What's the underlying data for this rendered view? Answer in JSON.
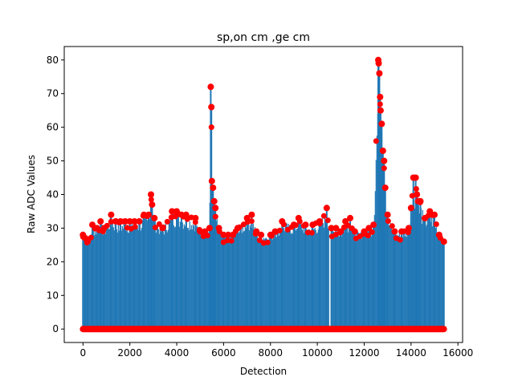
{
  "chart_data": {
    "type": "scatter",
    "title": "sp,on cm ,ge cm",
    "xlabel": "Detection",
    "ylabel": "Raw ADC Values",
    "xlim": [
      -800,
      16200
    ],
    "ylim": [
      -4,
      84
    ],
    "xticks": [
      "0",
      "2000",
      "4000",
      "6000",
      "8000",
      "10000",
      "12000",
      "14000",
      "16000"
    ],
    "xtick_values": [
      0,
      2000,
      4000,
      6000,
      8000,
      10000,
      12000,
      14000,
      16000
    ],
    "yticks": [
      "0",
      "10",
      "20",
      "30",
      "40",
      "50",
      "60",
      "70",
      "80"
    ],
    "ytick_values": [
      0,
      10,
      20,
      30,
      40,
      50,
      60,
      70,
      80
    ],
    "grid": false,
    "legend": "none",
    "stem_color": "#1f77b4",
    "marker_color": "#ff0000",
    "x_extent": [
      0,
      15400
    ],
    "gap_x": 10550,
    "series": [
      {
        "name": "",
        "peaks": [
          [
            0,
            28
          ],
          [
            100,
            27
          ],
          [
            200,
            26
          ],
          [
            400,
            31
          ],
          [
            600,
            30
          ],
          [
            750,
            32
          ],
          [
            900,
            30
          ],
          [
            1200,
            34
          ],
          [
            1400,
            32
          ],
          [
            1600,
            32
          ],
          [
            1800,
            32
          ],
          [
            2000,
            32
          ],
          [
            2200,
            32
          ],
          [
            2400,
            32
          ],
          [
            2600,
            34
          ],
          [
            2800,
            34
          ],
          [
            2900,
            40
          ],
          [
            2950,
            37
          ],
          [
            3050,
            33
          ],
          [
            3400,
            30
          ],
          [
            3800,
            35
          ],
          [
            4000,
            35
          ],
          [
            4200,
            34
          ],
          [
            4400,
            34
          ],
          [
            4800,
            33
          ],
          [
            5000,
            29
          ],
          [
            5200,
            29
          ],
          [
            5400,
            30
          ],
          [
            5450,
            72
          ],
          [
            5480,
            66
          ],
          [
            5500,
            44
          ],
          [
            5550,
            42
          ],
          [
            5600,
            38
          ],
          [
            5650,
            36
          ],
          [
            5800,
            30
          ],
          [
            6000,
            28
          ],
          [
            6200,
            28
          ],
          [
            6400,
            28
          ],
          [
            6600,
            30
          ],
          [
            7000,
            33
          ],
          [
            7200,
            34
          ],
          [
            7400,
            29
          ],
          [
            7600,
            28
          ],
          [
            8000,
            28
          ],
          [
            8200,
            29
          ],
          [
            8500,
            32
          ],
          [
            9000,
            31
          ],
          [
            9200,
            33
          ],
          [
            9500,
            31
          ],
          [
            9800,
            31
          ],
          [
            10100,
            32
          ],
          [
            10400,
            36
          ],
          [
            10600,
            30
          ],
          [
            10800,
            30
          ],
          [
            11000,
            29
          ],
          [
            11200,
            32
          ],
          [
            11400,
            33
          ],
          [
            11600,
            29
          ],
          [
            12000,
            29
          ],
          [
            12200,
            30
          ],
          [
            12400,
            31
          ],
          [
            12600,
            80
          ],
          [
            12620,
            79
          ],
          [
            12650,
            76
          ],
          [
            12680,
            69
          ],
          [
            12700,
            65
          ],
          [
            12750,
            61
          ],
          [
            12800,
            53
          ],
          [
            12850,
            50
          ],
          [
            12900,
            42
          ],
          [
            13000,
            34
          ],
          [
            13300,
            29
          ],
          [
            13600,
            29
          ],
          [
            13900,
            30
          ],
          [
            14000,
            36
          ],
          [
            14100,
            45
          ],
          [
            14200,
            45
          ],
          [
            14250,
            40
          ],
          [
            14300,
            38
          ],
          [
            14400,
            38
          ],
          [
            14600,
            33
          ],
          [
            14800,
            35
          ],
          [
            15000,
            34
          ],
          [
            15200,
            28
          ],
          [
            15400,
            26
          ]
        ]
      }
    ]
  }
}
